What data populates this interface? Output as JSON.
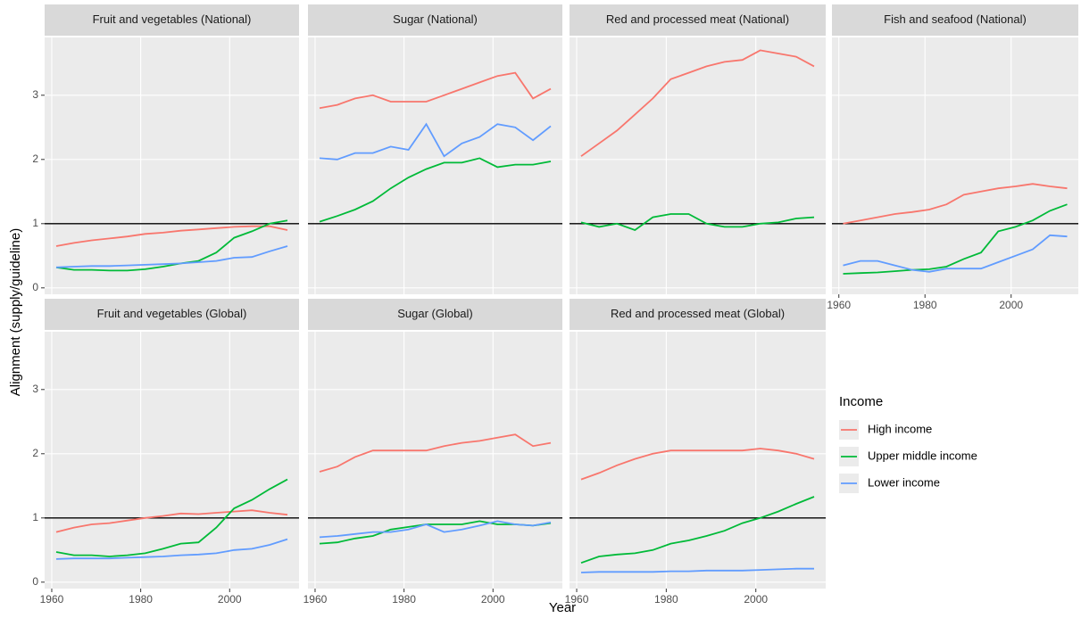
{
  "xlabel": "Year",
  "ylabel": "Alignment (supply/guideline)",
  "legend": {
    "title": "Income",
    "position": "right"
  },
  "chart_data": [
    {
      "type": "line",
      "title": "Fruit and vegetables (National)",
      "x": [
        1961,
        1965,
        1969,
        1973,
        1977,
        1981,
        1985,
        1989,
        1993,
        1997,
        2001,
        2005,
        2009,
        2013
      ],
      "xlim": [
        1958.4,
        2015.6
      ],
      "xticks": [
        1960,
        1980,
        2000
      ],
      "ylim": [
        -0.1,
        3.9
      ],
      "yticks": [
        0,
        1,
        2,
        3
      ],
      "hline": 1,
      "grid": true,
      "series": [
        {
          "name": "High income",
          "color": "#F8766D",
          "values": [
            0.65,
            0.7,
            0.74,
            0.77,
            0.8,
            0.84,
            0.86,
            0.89,
            0.91,
            0.93,
            0.95,
            0.96,
            0.96,
            0.9
          ]
        },
        {
          "name": "Upper middle income",
          "color": "#00BA38",
          "values": [
            0.32,
            0.28,
            0.28,
            0.27,
            0.27,
            0.29,
            0.33,
            0.38,
            0.42,
            0.55,
            0.78,
            0.88,
            1.0,
            1.05
          ]
        },
        {
          "name": "Lower income",
          "color": "#619CFF",
          "values": [
            0.32,
            0.33,
            0.34,
            0.34,
            0.35,
            0.36,
            0.37,
            0.38,
            0.4,
            0.42,
            0.47,
            0.48,
            0.57,
            0.65
          ]
        }
      ]
    },
    {
      "type": "line",
      "title": "Sugar (National)",
      "x": [
        1961,
        1965,
        1969,
        1973,
        1977,
        1981,
        1985,
        1989,
        1993,
        1997,
        2001,
        2005,
        2009,
        2013
      ],
      "xlim": [
        1958.4,
        2015.6
      ],
      "xticks": [
        1960,
        1980,
        2000
      ],
      "ylim": [
        -0.1,
        3.9
      ],
      "yticks": [
        0,
        1,
        2,
        3
      ],
      "hline": 1,
      "grid": true,
      "series": [
        {
          "name": "High income",
          "color": "#F8766D",
          "values": [
            2.8,
            2.85,
            2.95,
            3.0,
            2.9,
            2.9,
            2.9,
            3.0,
            3.1,
            3.2,
            3.3,
            3.35,
            2.95,
            3.1
          ]
        },
        {
          "name": "Upper middle income",
          "color": "#00BA38",
          "values": [
            1.03,
            1.12,
            1.22,
            1.35,
            1.55,
            1.72,
            1.85,
            1.95,
            1.95,
            2.02,
            1.88,
            1.92,
            1.92,
            1.97
          ]
        },
        {
          "name": "Lower income",
          "color": "#619CFF",
          "values": [
            2.02,
            2.0,
            2.1,
            2.1,
            2.2,
            2.15,
            2.55,
            2.05,
            2.25,
            2.35,
            2.55,
            2.5,
            2.3,
            2.52
          ]
        }
      ]
    },
    {
      "type": "line",
      "title": "Red and processed meat (National)",
      "x": [
        1961,
        1965,
        1969,
        1973,
        1977,
        1981,
        1985,
        1989,
        1993,
        1997,
        2001,
        2005,
        2009,
        2013
      ],
      "xlim": [
        1958.4,
        2015.6
      ],
      "xticks": [
        1960,
        1980,
        2000
      ],
      "ylim": [
        -0.1,
        3.9
      ],
      "yticks": [
        0,
        1,
        2,
        3
      ],
      "hline": 1,
      "grid": true,
      "series": [
        {
          "name": "High income",
          "color": "#F8766D",
          "values": [
            2.05,
            2.25,
            2.45,
            2.7,
            2.95,
            3.25,
            3.35,
            3.45,
            3.52,
            3.55,
            3.7,
            3.65,
            3.6,
            3.45
          ]
        },
        {
          "name": "Upper middle income",
          "color": "#00BA38",
          "values": [
            1.02,
            0.95,
            1.0,
            0.9,
            1.1,
            1.15,
            1.15,
            1.0,
            0.95,
            0.95,
            1.0,
            1.02,
            1.08,
            1.1
          ]
        }
      ]
    },
    {
      "type": "line",
      "title": "Fish and seafood (National)",
      "x": [
        1961,
        1965,
        1969,
        1973,
        1977,
        1981,
        1985,
        1989,
        1993,
        1997,
        2001,
        2005,
        2009,
        2013
      ],
      "xlim": [
        1958.4,
        2015.6
      ],
      "xticks": [
        1960,
        1980,
        2000
      ],
      "ylim": [
        -0.1,
        3.9
      ],
      "yticks": [
        0,
        1,
        2,
        3
      ],
      "hline": 1,
      "grid": true,
      "series": [
        {
          "name": "High income",
          "color": "#F8766D",
          "values": [
            1.0,
            1.05,
            1.1,
            1.15,
            1.18,
            1.22,
            1.3,
            1.45,
            1.5,
            1.55,
            1.58,
            1.62,
            1.58,
            1.55
          ]
        },
        {
          "name": "Upper middle income",
          "color": "#00BA38",
          "values": [
            0.22,
            0.23,
            0.24,
            0.26,
            0.28,
            0.29,
            0.33,
            0.45,
            0.55,
            0.88,
            0.95,
            1.05,
            1.2,
            1.3
          ]
        },
        {
          "name": "Lower income",
          "color": "#619CFF",
          "values": [
            0.35,
            0.42,
            0.42,
            0.35,
            0.28,
            0.25,
            0.3,
            0.3,
            0.3,
            0.4,
            0.5,
            0.6,
            0.82,
            0.8
          ]
        }
      ]
    },
    {
      "type": "line",
      "title": "Fruit and vegetables (Global)",
      "x": [
        1961,
        1965,
        1969,
        1973,
        1977,
        1981,
        1985,
        1989,
        1993,
        1997,
        2001,
        2005,
        2009,
        2013
      ],
      "xlim": [
        1958.4,
        2015.6
      ],
      "xticks": [
        1960,
        1980,
        2000
      ],
      "ylim": [
        -0.1,
        3.9
      ],
      "yticks": [
        0,
        1,
        2,
        3
      ],
      "hline": 1,
      "grid": true,
      "series": [
        {
          "name": "High income",
          "color": "#F8766D",
          "values": [
            0.78,
            0.85,
            0.9,
            0.92,
            0.96,
            1.0,
            1.03,
            1.07,
            1.06,
            1.08,
            1.1,
            1.12,
            1.08,
            1.05
          ]
        },
        {
          "name": "Upper middle income",
          "color": "#00BA38",
          "values": [
            0.47,
            0.42,
            0.42,
            0.4,
            0.42,
            0.45,
            0.52,
            0.6,
            0.62,
            0.85,
            1.15,
            1.28,
            1.45,
            1.6
          ]
        },
        {
          "name": "Lower income",
          "color": "#619CFF",
          "values": [
            0.36,
            0.37,
            0.37,
            0.37,
            0.38,
            0.39,
            0.4,
            0.42,
            0.43,
            0.45,
            0.5,
            0.52,
            0.58,
            0.67
          ]
        }
      ]
    },
    {
      "type": "line",
      "title": "Sugar (Global)",
      "x": [
        1961,
        1965,
        1969,
        1973,
        1977,
        1981,
        1985,
        1989,
        1993,
        1997,
        2001,
        2005,
        2009,
        2013
      ],
      "xlim": [
        1958.4,
        2015.6
      ],
      "xticks": [
        1960,
        1980,
        2000
      ],
      "ylim": [
        -0.1,
        3.9
      ],
      "yticks": [
        0,
        1,
        2,
        3
      ],
      "hline": 1,
      "grid": true,
      "series": [
        {
          "name": "High income",
          "color": "#F8766D",
          "values": [
            1.72,
            1.8,
            1.95,
            2.05,
            2.05,
            2.05,
            2.05,
            2.12,
            2.17,
            2.2,
            2.25,
            2.3,
            2.12,
            2.17
          ]
        },
        {
          "name": "Upper middle income",
          "color": "#00BA38",
          "values": [
            0.6,
            0.62,
            0.68,
            0.72,
            0.82,
            0.86,
            0.9,
            0.9,
            0.9,
            0.95,
            0.9,
            0.9,
            0.88,
            0.92
          ]
        },
        {
          "name": "Lower income",
          "color": "#619CFF",
          "values": [
            0.7,
            0.72,
            0.75,
            0.78,
            0.78,
            0.82,
            0.9,
            0.78,
            0.82,
            0.88,
            0.95,
            0.9,
            0.88,
            0.93
          ]
        }
      ]
    },
    {
      "type": "line",
      "title": "Red and processed meat (Global)",
      "x": [
        1961,
        1965,
        1969,
        1973,
        1977,
        1981,
        1985,
        1989,
        1993,
        1997,
        2001,
        2005,
        2009,
        2013
      ],
      "xlim": [
        1958.4,
        2015.6
      ],
      "xticks": [
        1960,
        1980,
        2000
      ],
      "ylim": [
        -0.1,
        3.9
      ],
      "yticks": [
        0,
        1,
        2,
        3
      ],
      "hline": 1,
      "grid": true,
      "series": [
        {
          "name": "High income",
          "color": "#F8766D",
          "values": [
            1.6,
            1.7,
            1.82,
            1.92,
            2.0,
            2.05,
            2.05,
            2.05,
            2.05,
            2.05,
            2.08,
            2.05,
            2.0,
            1.92
          ]
        },
        {
          "name": "Upper middle income",
          "color": "#00BA38",
          "values": [
            0.3,
            0.4,
            0.43,
            0.45,
            0.5,
            0.6,
            0.65,
            0.72,
            0.8,
            0.92,
            1.0,
            1.1,
            1.22,
            1.33
          ]
        },
        {
          "name": "Lower income",
          "color": "#619CFF",
          "values": [
            0.15,
            0.16,
            0.16,
            0.16,
            0.16,
            0.17,
            0.17,
            0.18,
            0.18,
            0.18,
            0.19,
            0.2,
            0.21,
            0.21
          ]
        }
      ]
    }
  ]
}
